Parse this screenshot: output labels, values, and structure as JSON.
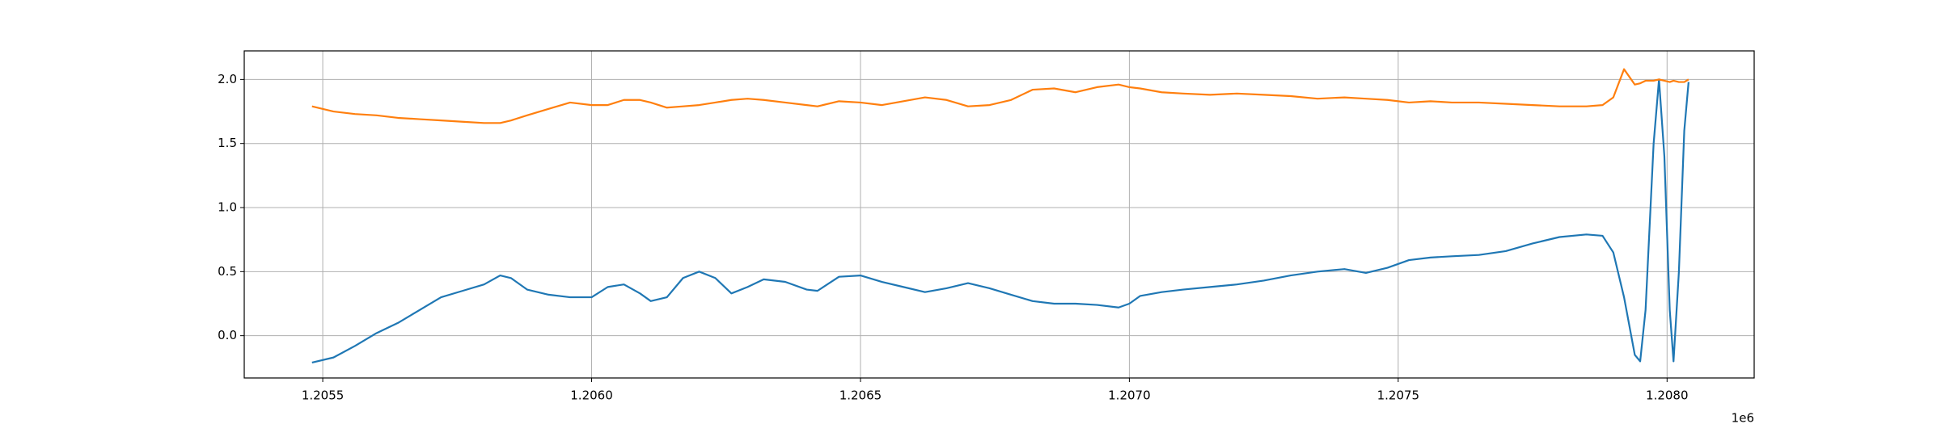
{
  "chart_data": {
    "type": "line",
    "x": [
      1205480,
      1205520,
      1205560,
      1205600,
      1205640,
      1205680,
      1205720,
      1205760,
      1205800,
      1205830,
      1205850,
      1205880,
      1205920,
      1205960,
      1206000,
      1206030,
      1206060,
      1206090,
      1206110,
      1206140,
      1206170,
      1206200,
      1206230,
      1206260,
      1206290,
      1206320,
      1206360,
      1206400,
      1206420,
      1206460,
      1206500,
      1206540,
      1206580,
      1206620,
      1206660,
      1206700,
      1206740,
      1206780,
      1206820,
      1206860,
      1206900,
      1206940,
      1206980,
      1207000,
      1207020,
      1207060,
      1207100,
      1207150,
      1207200,
      1207250,
      1207300,
      1207350,
      1207400,
      1207440,
      1207480,
      1207520,
      1207560,
      1207600,
      1207650,
      1207700,
      1207750,
      1207800,
      1207850,
      1207880,
      1207900,
      1207920,
      1207940,
      1207950,
      1207960,
      1207975,
      1207985,
      1207995,
      1208005,
      1208012,
      1208022,
      1208032,
      1208040
    ],
    "series": [
      {
        "color": "#1f77b4",
        "values": [
          -0.21,
          -0.17,
          -0.08,
          0.02,
          0.1,
          0.2,
          0.3,
          0.35,
          0.4,
          0.47,
          0.45,
          0.36,
          0.32,
          0.3,
          0.3,
          0.38,
          0.4,
          0.33,
          0.27,
          0.3,
          0.45,
          0.5,
          0.45,
          0.33,
          0.38,
          0.44,
          0.42,
          0.36,
          0.35,
          0.46,
          0.47,
          0.42,
          0.38,
          0.34,
          0.37,
          0.41,
          0.37,
          0.32,
          0.27,
          0.25,
          0.25,
          0.24,
          0.22,
          0.25,
          0.31,
          0.34,
          0.36,
          0.38,
          0.4,
          0.43,
          0.47,
          0.5,
          0.52,
          0.49,
          0.53,
          0.59,
          0.61,
          0.62,
          0.63,
          0.66,
          0.72,
          0.77,
          0.79,
          0.78,
          0.65,
          0.3,
          -0.15,
          -0.2,
          0.2,
          1.5,
          2.0,
          1.4,
          0.2,
          -0.2,
          0.5,
          1.6,
          1.98
        ]
      },
      {
        "color": "#ff7f0e",
        "values": [
          1.79,
          1.75,
          1.73,
          1.72,
          1.7,
          1.69,
          1.68,
          1.67,
          1.66,
          1.66,
          1.68,
          1.72,
          1.77,
          1.82,
          1.8,
          1.8,
          1.84,
          1.84,
          1.82,
          1.78,
          1.79,
          1.8,
          1.82,
          1.84,
          1.85,
          1.84,
          1.82,
          1.8,
          1.79,
          1.83,
          1.82,
          1.8,
          1.83,
          1.86,
          1.84,
          1.79,
          1.8,
          1.84,
          1.92,
          1.93,
          1.9,
          1.94,
          1.96,
          1.94,
          1.93,
          1.9,
          1.89,
          1.88,
          1.89,
          1.88,
          1.87,
          1.85,
          1.86,
          1.85,
          1.84,
          1.82,
          1.83,
          1.82,
          1.82,
          1.81,
          1.8,
          1.79,
          1.79,
          1.8,
          1.86,
          2.08,
          1.96,
          1.97,
          1.99,
          1.99,
          2.0,
          1.99,
          1.98,
          1.99,
          1.98,
          1.98,
          2.0
        ]
      }
    ],
    "xlim": [
      1205354,
      1208162
    ],
    "xticks": [
      {
        "value": 1205500,
        "label": "1.2055"
      },
      {
        "value": 1206000,
        "label": "1.2060"
      },
      {
        "value": 1206500,
        "label": "1.2065"
      },
      {
        "value": 1207000,
        "label": "1.2070"
      },
      {
        "value": 1207500,
        "label": "1.2075"
      },
      {
        "value": 1208000,
        "label": "1.2080"
      }
    ],
    "x_offset_label": "1e6",
    "ylim": [
      -0.33,
      2.223
    ],
    "yticks": [
      {
        "value": 0,
        "label": "0.0"
      },
      {
        "value": 0.5,
        "label": "0.5"
      },
      {
        "value": 1,
        "label": "1.0"
      },
      {
        "value": 1.5,
        "label": "1.5"
      },
      {
        "value": 2,
        "label": "2.0"
      }
    ],
    "grid": true
  }
}
